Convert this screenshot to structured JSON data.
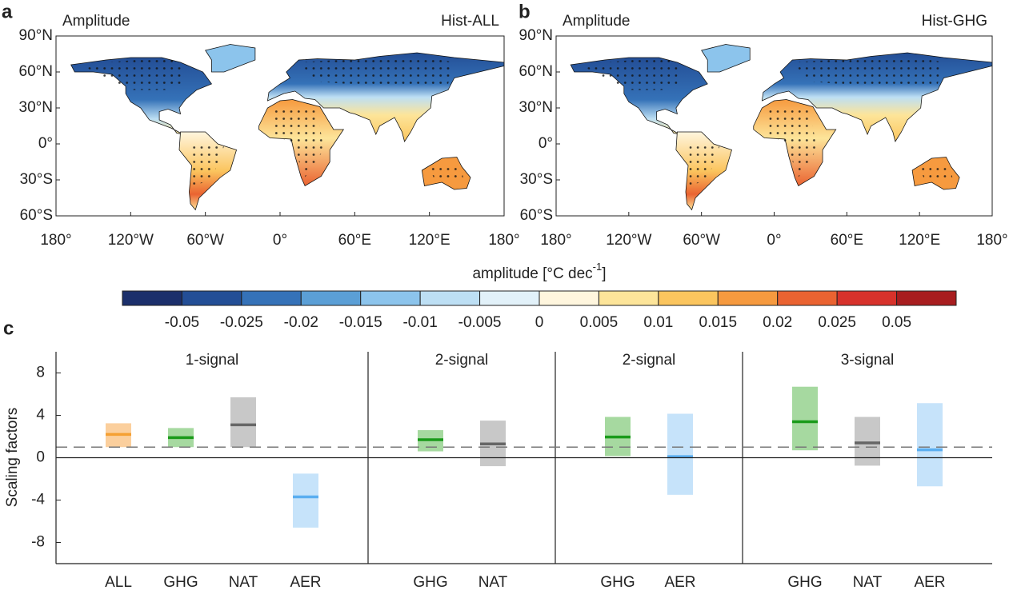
{
  "maps": [
    {
      "panel": "a",
      "left_label": "Amplitude",
      "right_label": "Hist-ALL"
    },
    {
      "panel": "b",
      "left_label": "Amplitude",
      "right_label": "Hist-GHG"
    }
  ],
  "map_axes": {
    "ylim": [
      -60,
      90
    ],
    "xlim": [
      -180,
      180
    ],
    "yticks": [
      {
        "value": 90,
        "label": "90°N"
      },
      {
        "value": 60,
        "label": "60°N"
      },
      {
        "value": 30,
        "label": "30°N"
      },
      {
        "value": 0,
        "label": "0°"
      },
      {
        "value": -30,
        "label": "30°S"
      },
      {
        "value": -60,
        "label": "60°S"
      }
    ],
    "xticks": [
      {
        "value": -180,
        "label": "180°"
      },
      {
        "value": -120,
        "label": "120°W"
      },
      {
        "value": -60,
        "label": "60°W"
      },
      {
        "value": 0,
        "label": "0°"
      },
      {
        "value": 60,
        "label": "60°E"
      },
      {
        "value": 120,
        "label": "120°E"
      },
      {
        "value": 180,
        "label": "180°"
      }
    ]
  },
  "colorbar": {
    "title": "amplitude [°C dec",
    "title_exponent": "-1",
    "title_close": "]",
    "colors": [
      "#1b2f6b",
      "#234e96",
      "#3572b8",
      "#5b9fd6",
      "#8cc4ec",
      "#bddff4",
      "#e2f1f9",
      "#fff6de",
      "#fde59a",
      "#fbc55e",
      "#f69a3f",
      "#ea6331",
      "#d7322b",
      "#a81d1f"
    ],
    "ticks": [
      -0.05,
      -0.025,
      -0.02,
      -0.015,
      -0.01,
      -0.005,
      0,
      0.005,
      0.01,
      0.015,
      0.02,
      0.025,
      0.05
    ]
  },
  "chart_data": {
    "type": "range-bar",
    "panel": "c",
    "ylabel": "Scaling factors",
    "ylim": [
      -10,
      10
    ],
    "yticks": [
      -8,
      -4,
      0,
      4,
      8
    ],
    "reference_line": 1,
    "groups": [
      {
        "title": "1-signal",
        "categories": [
          "ALL",
          "GHG",
          "NAT",
          "AER"
        ],
        "values": [
          2.2,
          1.9,
          3.1,
          -3.7
        ],
        "low": [
          1.0,
          1.0,
          1.0,
          -6.6
        ],
        "high": [
          3.25,
          2.8,
          5.7,
          -1.5
        ],
        "colors": [
          "#f5a033",
          "#1a9a1a",
          "#666666",
          "#5aaef0"
        ],
        "fill_colors": [
          "#fbcf9d",
          "#a6d9a0",
          "#c8c8c8",
          "#c6e3fa"
        ]
      },
      {
        "title": "2-signal",
        "categories": [
          "GHG",
          "NAT"
        ],
        "values": [
          1.7,
          1.3
        ],
        "low": [
          0.6,
          -0.8
        ],
        "high": [
          2.6,
          3.5
        ],
        "colors": [
          "#1a9a1a",
          "#666666"
        ],
        "fill_colors": [
          "#a6d9a0",
          "#c8c8c8"
        ]
      },
      {
        "title": "2-signal",
        "categories": [
          "GHG",
          "AER"
        ],
        "values": [
          1.95,
          0.1
        ],
        "low": [
          0.15,
          -3.5
        ],
        "high": [
          3.85,
          4.15
        ],
        "colors": [
          "#1a9a1a",
          "#5aaef0"
        ],
        "fill_colors": [
          "#a6d9a0",
          "#c6e3fa"
        ]
      },
      {
        "title": "3-signal",
        "categories": [
          "GHG",
          "NAT",
          "AER"
        ],
        "values": [
          3.4,
          1.4,
          0.75
        ],
        "low": [
          0.7,
          -0.75,
          -2.7
        ],
        "high": [
          6.7,
          3.85,
          5.15
        ],
        "colors": [
          "#1a9a1a",
          "#666666",
          "#5aaef0"
        ],
        "fill_colors": [
          "#a6d9a0",
          "#c8c8c8",
          "#c6e3fa"
        ]
      }
    ]
  }
}
